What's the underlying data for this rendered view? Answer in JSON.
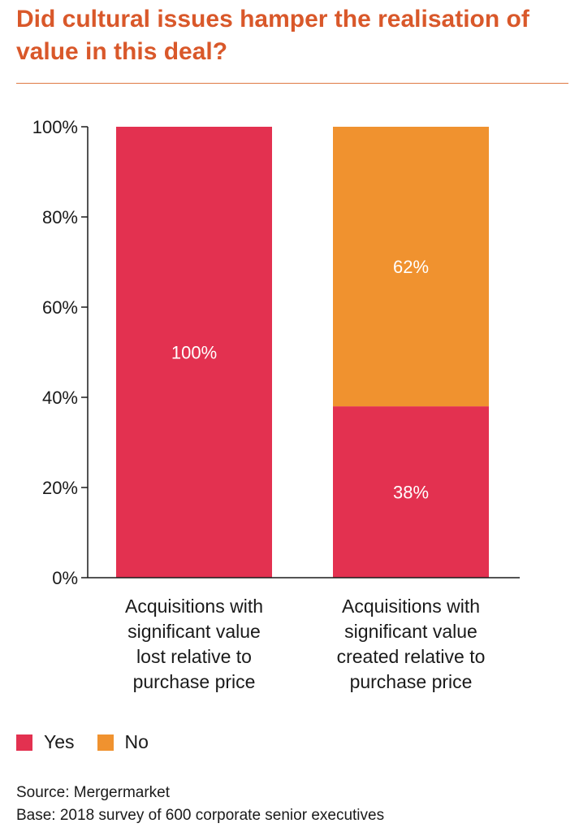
{
  "title": "Did cultural issues hamper the realisation of value in this deal?",
  "colors": {
    "title": "#d9582a",
    "yes": "#e33150",
    "no": "#f0922f",
    "axis": "#1a1a1a"
  },
  "chart_data": {
    "type": "bar",
    "stacked": true,
    "categories": [
      [
        "Acquisitions with",
        "significant value",
        "lost relative to",
        "purchase price"
      ],
      [
        "Acquisitions with",
        "significant value",
        "created relative to",
        "purchase price"
      ]
    ],
    "series": [
      {
        "name": "Yes",
        "color": "#e33150",
        "values": [
          100,
          38
        ],
        "labels": [
          "100%",
          "38%"
        ]
      },
      {
        "name": "No",
        "color": "#f0922f",
        "values": [
          0,
          62
        ],
        "labels": [
          "",
          "62%"
        ]
      }
    ],
    "yticks": [
      "0%",
      "20%",
      "40%",
      "60%",
      "80%",
      "100%"
    ],
    "ylim": [
      0,
      100
    ],
    "grid": false,
    "legend_position": "bottom-left"
  },
  "legend": {
    "yes": "Yes",
    "no": "No"
  },
  "source": {
    "line1": "Source: Mergermarket",
    "line2": "Base: 2018 survey of 600 corporate senior executives"
  }
}
